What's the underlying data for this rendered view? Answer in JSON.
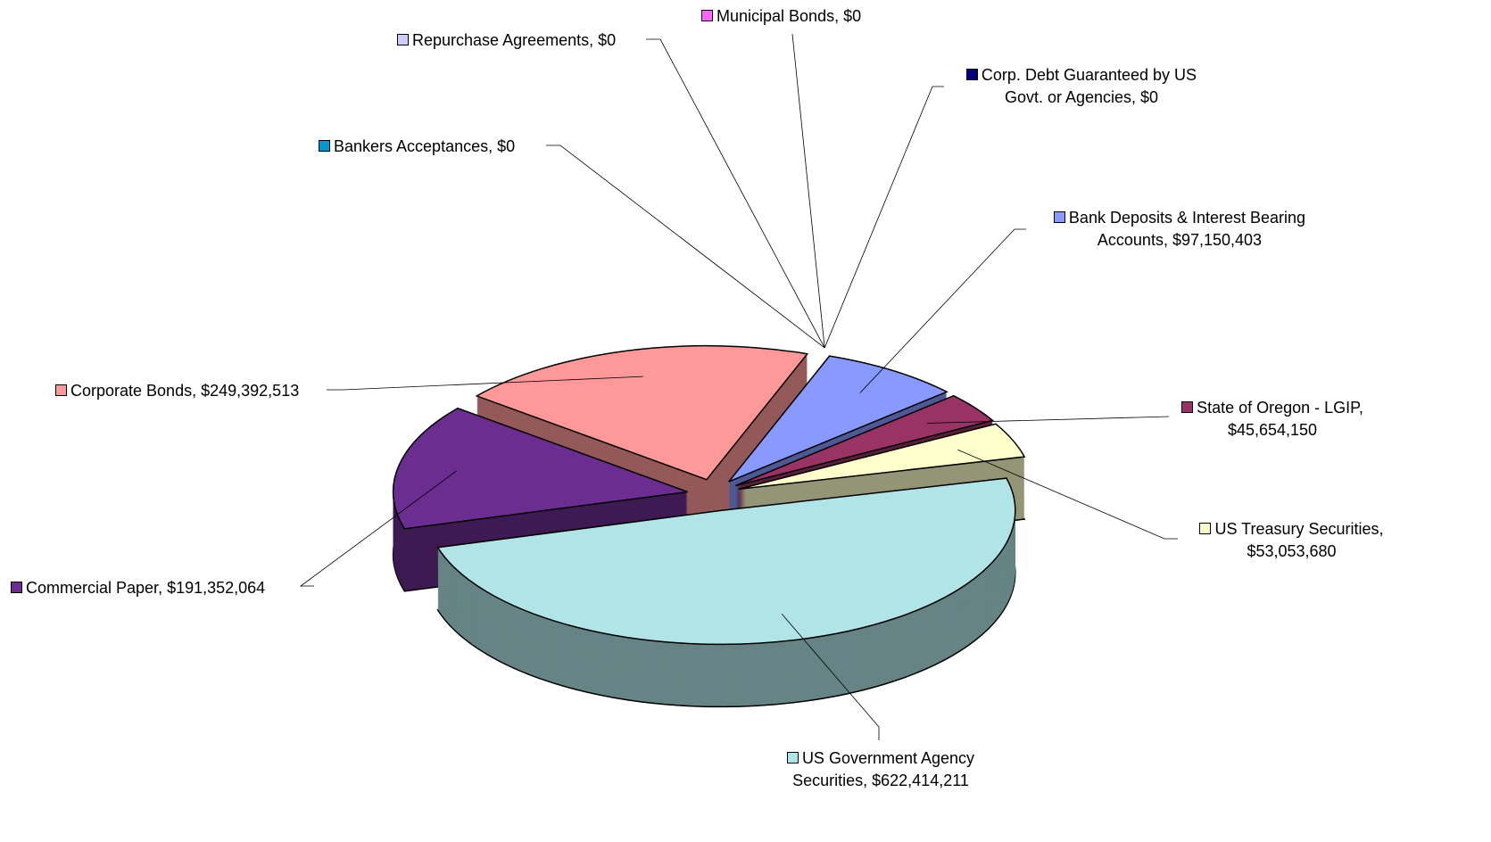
{
  "chart_data": {
    "type": "pie",
    "three_d": true,
    "exploded": true,
    "categories": [
      "Municipal Bonds",
      "Corp. Debt Guaranteed by US Govt. or Agencies",
      "Bank Deposits & Interest Bearing Accounts",
      "State of Oregon - LGIP",
      "US Treasury Securities",
      "US Government Agency Securities",
      "Commercial Paper",
      "Corporate Bonds",
      "Bankers Acceptances",
      "Repurchase Agreements"
    ],
    "values": [
      0,
      0,
      97150403,
      45654150,
      53053680,
      622414211,
      191352064,
      249392513,
      0,
      0
    ],
    "value_labels": [
      "$0",
      "$0",
      "$97,150,403",
      "$45,654,150",
      "$53,053,680",
      "$622,414,211",
      "$191,352,064",
      "$249,392,513",
      "$0",
      "$0"
    ],
    "colors": [
      "#ff66ff",
      "#000080",
      "#8899ff",
      "#993366",
      "#ffffcc",
      "#b0e4e6",
      "#6b2d8f",
      "#ff9999",
      "#0099cc",
      "#ccccff"
    ]
  }
}
